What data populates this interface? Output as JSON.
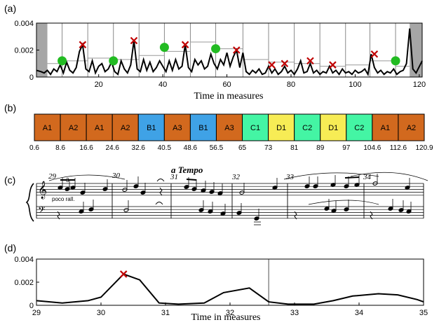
{
  "panels": {
    "a": {
      "label": "(a)"
    },
    "b": {
      "label": "(b)"
    },
    "c": {
      "label": "(c)"
    },
    "d": {
      "label": "(d)"
    }
  },
  "chart_data": [
    {
      "type": "line",
      "panel": "(a)",
      "xlabel": "Time in measures",
      "ylabel": "",
      "xlim": [
        0.6,
        120.9
      ],
      "ylim": [
        0,
        0.004
      ],
      "xticks": [
        "20",
        "40",
        "60",
        "80",
        "100",
        "120"
      ],
      "yticks": [
        "0",
        "0.002",
        "0.004"
      ],
      "boundaries": [
        8.6,
        16.6,
        24.6,
        32.6,
        40.5,
        48.6,
        56.5,
        65,
        73,
        81,
        89,
        97,
        104.6,
        112.6
      ],
      "gray_shaded_regions": [
        [
          0.6,
          4
        ],
        [
          117,
          120.9
        ]
      ],
      "green_markers": {
        "x": [
          8.6,
          24.6,
          40.5,
          56.5,
          112.6
        ],
        "y": [
          0.0012,
          0.0012,
          0.0022,
          0.0021,
          0.0012
        ]
      },
      "red_markers": {
        "x": [
          15,
          31,
          47,
          63,
          74,
          78,
          86,
          93,
          106
        ],
        "y": [
          0.0024,
          0.0027,
          0.0024,
          0.002,
          0.0009,
          0.001,
          0.0012,
          0.0009,
          0.0017
        ]
      },
      "series": [
        {
          "values_x": [
            0.6,
            2,
            3,
            4,
            5,
            6,
            7,
            8,
            9,
            10,
            11,
            12,
            13,
            14,
            15,
            16,
            17,
            18,
            19,
            20,
            21,
            22,
            23,
            24,
            25,
            26,
            27,
            28,
            29,
            30,
            31,
            32,
            33,
            34,
            35,
            36,
            37,
            38,
            39,
            40,
            41,
            42,
            43,
            44,
            45,
            46,
            47,
            48,
            49,
            50,
            51,
            52,
            53,
            54,
            55,
            56,
            57,
            58,
            59,
            60,
            61,
            62,
            63,
            64,
            65,
            66,
            67,
            68,
            69,
            70,
            71,
            72,
            73,
            74,
            75,
            76,
            77,
            78,
            79,
            80,
            81,
            82,
            83,
            84,
            85,
            86,
            87,
            88,
            89,
            90,
            91,
            92,
            93,
            94,
            95,
            96,
            97,
            98,
            99,
            100,
            101,
            102,
            103,
            104,
            105,
            106,
            107,
            108,
            109,
            110,
            111,
            112,
            113,
            114,
            115,
            116,
            117,
            118,
            119,
            120.9
          ],
          "values_y": [
            0.0005,
            0.0004,
            0.0003,
            0.0005,
            0.0002,
            0.0006,
            0.0004,
            0.0009,
            0.0003,
            0.0011,
            0.0005,
            0.0003,
            0.0007,
            0.0019,
            0.0024,
            0.0006,
            0.0004,
            0.0012,
            0.0003,
            0.0008,
            0.001,
            0.0004,
            0.0006,
            0.0011,
            0.0004,
            0.0002,
            0.0012,
            0.0006,
            0.0003,
            0.0009,
            0.0027,
            0.0006,
            0.0004,
            0.0013,
            0.0005,
            0.0011,
            0.0004,
            0.0007,
            0.0012,
            0.0008,
            0.0004,
            0.0012,
            0.0005,
            0.0013,
            0.0006,
            0.0008,
            0.0024,
            0.0007,
            0.0004,
            0.0013,
            0.0009,
            0.0012,
            0.0006,
            0.0008,
            0.0017,
            0.001,
            0.0006,
            0.0013,
            0.0009,
            0.0018,
            0.0008,
            0.0015,
            0.002,
            0.0007,
            0.0018,
            0.0004,
            0.0002,
            0.0005,
            0.0003,
            0.0006,
            0.0002,
            0.0003,
            0.0008,
            0.0003,
            0.0006,
            0.0002,
            0.0004,
            0.0008,
            0.0003,
            0.0005,
            0.0002,
            0.0006,
            0.0012,
            0.0003,
            0.0004,
            0.001,
            0.0003,
            0.0005,
            0.0002,
            0.0004,
            0.0003,
            0.0008,
            0.0003,
            0.0005,
            0.0002,
            0.0006,
            0.0003,
            0.0004,
            0.0002,
            0.0005,
            0.0003,
            0.0004,
            0.0006,
            0.0002,
            0.0017,
            0.0007,
            0.0003,
            0.0005,
            0.0002,
            0.0004,
            0.0003,
            0.0006,
            0.0002,
            0.0004,
            0.0005,
            0.001,
            0.0036,
            0.0006,
            0.0003,
            0.0012
          ]
        },
        {
          "name": "",
          "values_x": [
            4,
            8.6,
            16.6,
            24.6,
            32.6,
            40.5,
            48.6,
            56.5,
            65,
            73,
            81,
            89,
            97,
            104.6,
            112.6,
            117
          ],
          "values_y": [
            0.001,
            0.0012,
            0.0014,
            0.0013,
            0.0016,
            0.0019,
            0.0026,
            0.0021,
            0.0013,
            0.0011,
            0.001,
            0.0008,
            0.0009,
            0.0012,
            0.0008,
            0.0008
          ]
        }
      ]
    },
    {
      "type": "table",
      "panel": "(b)",
      "segments": [
        {
          "label": "A1",
          "color": "#d2691e"
        },
        {
          "label": "A2",
          "color": "#d2691e"
        },
        {
          "label": "A1",
          "color": "#d2691e"
        },
        {
          "label": "A2",
          "color": "#d2691e"
        },
        {
          "label": "B1",
          "color": "#3fa2e6"
        },
        {
          "label": "A3",
          "color": "#d2691e"
        },
        {
          "label": "B1",
          "color": "#3fa2e6"
        },
        {
          "label": "A3",
          "color": "#d2691e"
        },
        {
          "label": "C1",
          "color": "#44f5a4"
        },
        {
          "label": "D1",
          "color": "#f7ec55"
        },
        {
          "label": "C2",
          "color": "#44f5a4"
        },
        {
          "label": "D1",
          "color": "#f7ec55"
        },
        {
          "label": "C2",
          "color": "#44f5a4"
        },
        {
          "label": "A1",
          "color": "#d2691e"
        },
        {
          "label": "A2",
          "color": "#d2691e"
        }
      ],
      "boundaries": [
        "0.6",
        "8.6",
        "16.6",
        "24.6",
        "32.6",
        "40.5",
        "48.6",
        "56.5",
        "65",
        "73",
        "81",
        "89",
        "97",
        "104.6",
        "112.6",
        "120.9"
      ]
    },
    {
      "type": "line",
      "panel": "(d)",
      "xlabel": "Time in measures",
      "ylabel": "",
      "xlim": [
        29,
        35
      ],
      "ylim": [
        0,
        0.004
      ],
      "xticks": [
        "29",
        "30",
        "31",
        "32",
        "33",
        "34",
        "35"
      ],
      "yticks": [
        "0",
        "0.002",
        "0.004"
      ],
      "vline": 32.6,
      "red_marker": {
        "x": 30.35,
        "y": 0.0027
      },
      "series": [
        {
          "x": [
            29,
            29.4,
            29.8,
            30.0,
            30.35,
            30.6,
            30.9,
            31.2,
            31.6,
            31.9,
            32.3,
            32.6,
            32.9,
            33.3,
            33.6,
            33.9,
            34.3,
            34.6,
            34.9,
            35
          ],
          "y": [
            0.0004,
            0.0002,
            0.0004,
            0.0007,
            0.0027,
            0.0022,
            0.0002,
            0.0001,
            0.0002,
            0.0011,
            0.0015,
            0.0003,
            0.0001,
            0.0001,
            0.0004,
            0.0008,
            0.001,
            0.0009,
            0.0005,
            0.0003
          ]
        }
      ]
    }
  ],
  "score": {
    "tempo_marking": "a Tempo",
    "expression": "poco rall.",
    "measure_numbers": [
      "29",
      "30",
      "31",
      "32",
      "33",
      "34"
    ],
    "triplet": "3"
  }
}
